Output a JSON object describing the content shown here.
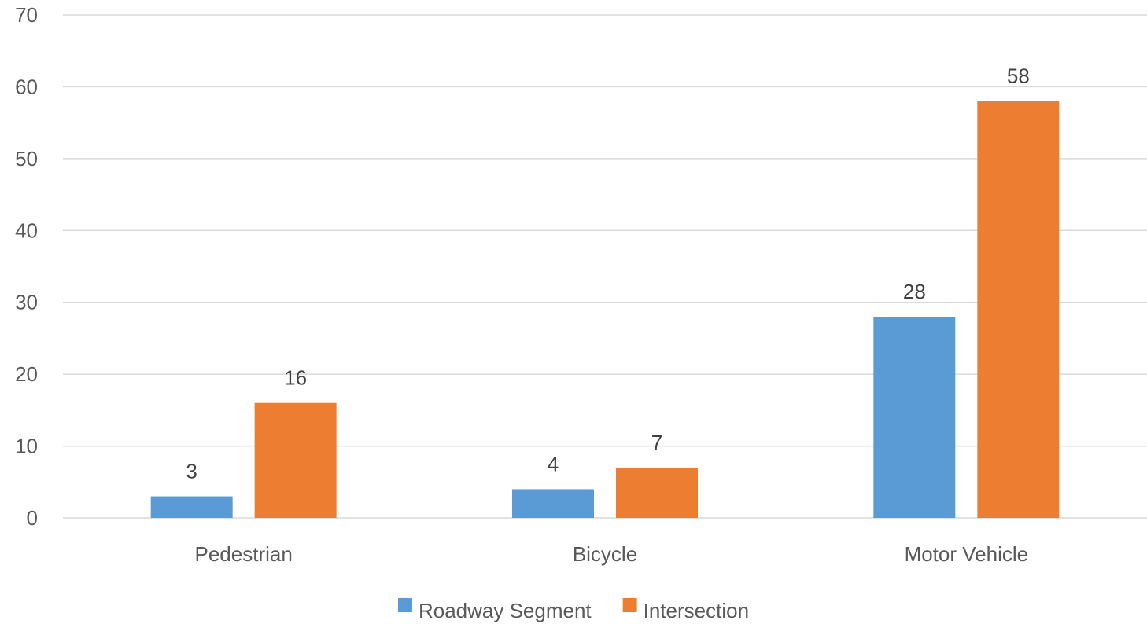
{
  "chart_data": {
    "type": "bar",
    "title": "",
    "xlabel": "",
    "ylabel": "",
    "categories": [
      "Pedestrian",
      "Bicycle",
      "Motor Vehicle"
    ],
    "series": [
      {
        "name": "Roadway Segment",
        "values": [
          3,
          4,
          28
        ],
        "color": "#5B9BD5"
      },
      {
        "name": "Intersection",
        "values": [
          16,
          7,
          58
        ],
        "color": "#ED7D31"
      }
    ],
    "ylim": [
      0,
      70
    ],
    "yticks": [
      0,
      10,
      20,
      30,
      40,
      50,
      60,
      70
    ],
    "grid": true,
    "data_labels": true,
    "legend_position": "bottom"
  },
  "colors": {
    "grid": "#D9D9D9",
    "axis": "#D9D9D9"
  }
}
